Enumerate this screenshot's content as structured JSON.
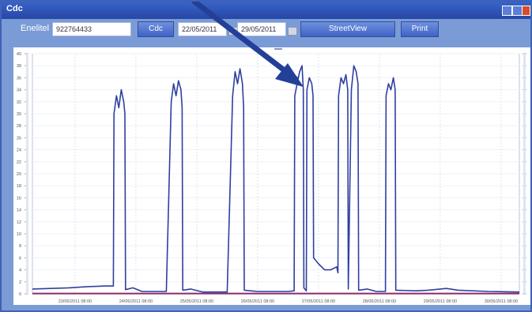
{
  "window": {
    "title": "Cdc"
  },
  "toolbar": {
    "enel_label": "Enelitel",
    "enel_value": "922764433",
    "cdc_button": "Cdc",
    "date_from": "22/05/2011",
    "date_to": "29/05/2011",
    "streetview_button": "StreetView",
    "print_button": "Print"
  },
  "icons": [
    "minimize-icon",
    "maximize-icon",
    "close-icon",
    "calendar-icon",
    "arrow-annotation-icon"
  ],
  "colors": {
    "titlebar": "#2647a6",
    "chrome": "#7b9bd6",
    "series": "#2f3fa0",
    "baseline": "#8a2a6a"
  },
  "chart_data": {
    "type": "line",
    "x_ticks": [
      "23/05/2011 08:00",
      "24/05/2011 08:00",
      "25/05/2011 08:00",
      "26/05/2011 08:00",
      "27/05/2011 08:00",
      "28/05/2011 08:00",
      "29/05/2011 08:00",
      "30/05/2011 08:00"
    ],
    "ylim": [
      0,
      40
    ],
    "y_ticks": [
      0,
      2,
      4,
      6,
      8,
      10,
      12,
      14,
      16,
      18,
      20,
      22,
      24,
      26,
      28,
      30,
      32,
      34,
      36,
      38,
      40
    ],
    "grid": true,
    "series": [
      {
        "values": [
          [
            0.0,
            0.8
          ],
          [
            0.3,
            0.9
          ],
          [
            0.6,
            1.0
          ],
          [
            0.9,
            1.2
          ],
          [
            1.2,
            1.3
          ],
          [
            1.33,
            1.3
          ],
          [
            1.34,
            30
          ],
          [
            1.38,
            33
          ],
          [
            1.42,
            31
          ],
          [
            1.46,
            34
          ],
          [
            1.5,
            32
          ],
          [
            1.52,
            30
          ],
          [
            1.53,
            0.7
          ],
          [
            1.65,
            1.0
          ],
          [
            1.8,
            0.4
          ],
          [
            2.2,
            0.4
          ],
          [
            2.28,
            32
          ],
          [
            2.32,
            35
          ],
          [
            2.36,
            33
          ],
          [
            2.4,
            35.5
          ],
          [
            2.44,
            34
          ],
          [
            2.46,
            31
          ],
          [
            2.47,
            0.6
          ],
          [
            2.6,
            0.8
          ],
          [
            2.8,
            0.3
          ],
          [
            3.2,
            0.3
          ],
          [
            3.29,
            33
          ],
          [
            3.33,
            37
          ],
          [
            3.37,
            35
          ],
          [
            3.41,
            37.5
          ],
          [
            3.45,
            35
          ],
          [
            3.47,
            31
          ],
          [
            3.48,
            0.6
          ],
          [
            3.7,
            0.4
          ],
          [
            4.2,
            0.4
          ],
          [
            4.3,
            0.5
          ],
          [
            4.31,
            33
          ],
          [
            4.35,
            35
          ],
          [
            4.39,
            37
          ],
          [
            4.43,
            38
          ],
          [
            4.45,
            34
          ],
          [
            4.46,
            1.0
          ],
          [
            4.5,
            0.5
          ],
          [
            4.51,
            34
          ],
          [
            4.55,
            36
          ],
          [
            4.59,
            35
          ],
          [
            4.61,
            33
          ],
          [
            4.62,
            6
          ],
          [
            4.7,
            5
          ],
          [
            4.8,
            4
          ],
          [
            4.9,
            4
          ],
          [
            5.0,
            4.5
          ],
          [
            5.02,
            3.5
          ],
          [
            5.03,
            33
          ],
          [
            5.07,
            36
          ],
          [
            5.11,
            35
          ],
          [
            5.15,
            36.5
          ],
          [
            5.18,
            34
          ],
          [
            5.19,
            0.8
          ],
          [
            5.24,
            34
          ],
          [
            5.28,
            38
          ],
          [
            5.32,
            37
          ],
          [
            5.35,
            35
          ],
          [
            5.36,
            0.6
          ],
          [
            5.5,
            0.8
          ],
          [
            5.65,
            0.4
          ],
          [
            5.8,
            0.4
          ],
          [
            5.81,
            33
          ],
          [
            5.85,
            35
          ],
          [
            5.89,
            34
          ],
          [
            5.93,
            36
          ],
          [
            5.96,
            34
          ],
          [
            5.97,
            0.6
          ],
          [
            6.3,
            0.5
          ],
          [
            6.5,
            0.6
          ],
          [
            6.8,
            0.9
          ],
          [
            7.0,
            0.6
          ],
          [
            7.5,
            0.4
          ],
          [
            8.0,
            0.3
          ]
        ]
      },
      {
        "values": [
          [
            0.0,
            0.05
          ],
          [
            8.0,
            0.05
          ]
        ]
      }
    ]
  }
}
